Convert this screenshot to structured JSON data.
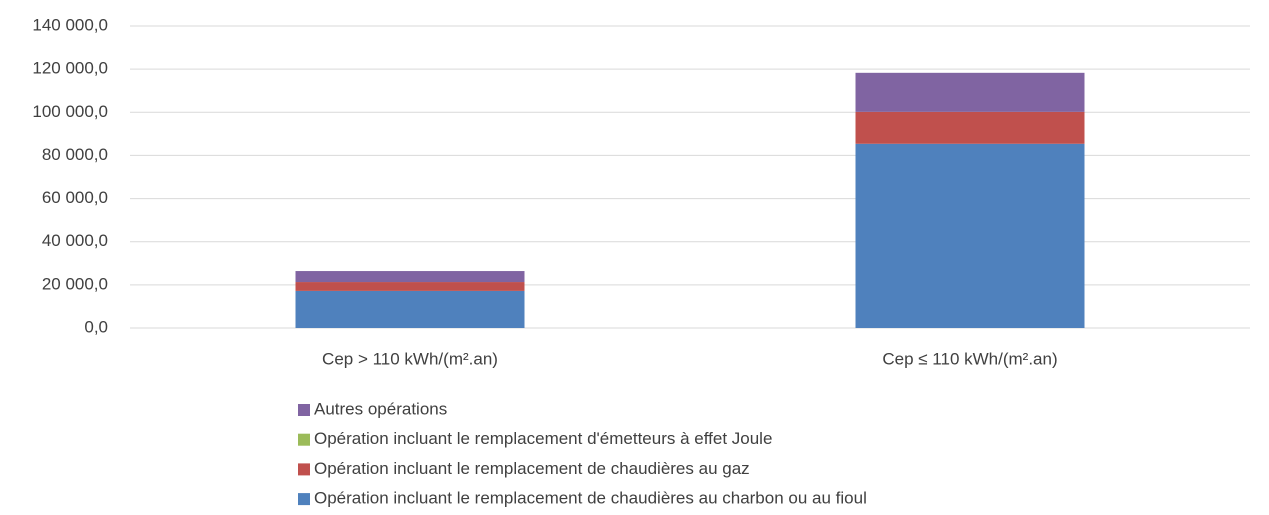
{
  "chart_data": {
    "type": "stacked_bar",
    "categories": [
      "Cep > 110 kWh/(m².an)",
      "Cep ≤ 110 kWh/(m².an)"
    ],
    "series": [
      {
        "name": "Opération incluant le remplacement de chaudières au charbon ou au fioul",
        "color": "#4f81bd",
        "values": [
          17200,
          85400
        ]
      },
      {
        "name": "Opération incluant le remplacement de chaudières au gaz",
        "color": "#c0504d",
        "values": [
          4100,
          14800
        ]
      },
      {
        "name": "Opération incluant le remplacement d'émetteurs à effet Joule",
        "color": "#9bbb59",
        "values": [
          0,
          0
        ]
      },
      {
        "name": "Autres opérations",
        "color": "#8064a2",
        "values": [
          5100,
          18100
        ]
      }
    ],
    "ylim": [
      0,
      140000
    ],
    "yticks": [
      {
        "value": 0,
        "label": "0,0"
      },
      {
        "value": 20000,
        "label": "20 000,0"
      },
      {
        "value": 40000,
        "label": "40 000,0"
      },
      {
        "value": 60000,
        "label": "60 000,0"
      },
      {
        "value": 80000,
        "label": "80 000,0"
      },
      {
        "value": 100000,
        "label": "100 000,0"
      },
      {
        "value": 120000,
        "label": "120 000,0"
      },
      {
        "value": 140000,
        "label": "140 000,0"
      }
    ],
    "grid": true,
    "legend": "bottom"
  }
}
